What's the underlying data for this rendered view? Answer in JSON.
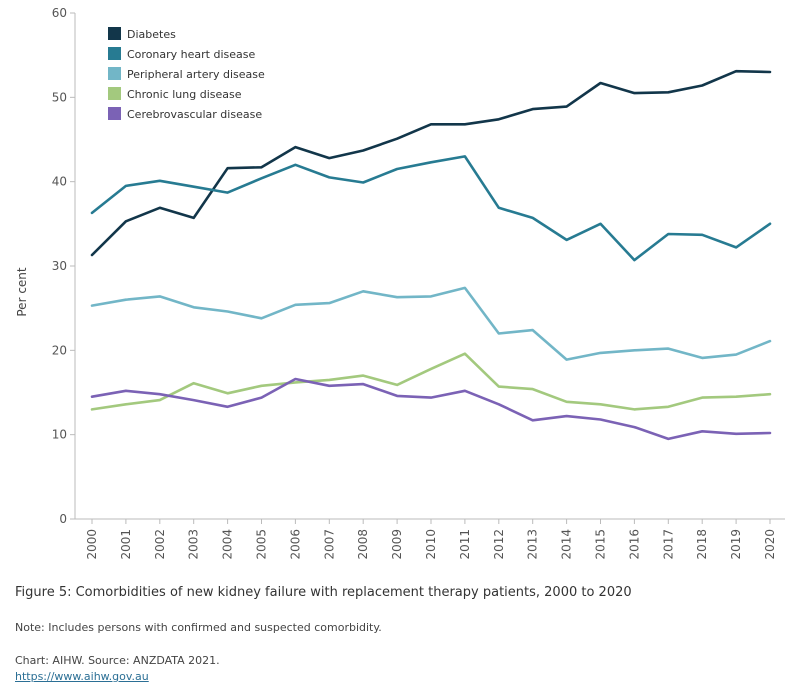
{
  "chart_data": {
    "type": "line",
    "title": "",
    "xlabel": "",
    "ylabel": "Per cent",
    "ylim": [
      0,
      60
    ],
    "yticks": [
      0,
      10,
      20,
      30,
      40,
      50,
      60
    ],
    "x": [
      "2000",
      "2001",
      "2002",
      "2003",
      "2004",
      "2005",
      "2006",
      "2007",
      "2008",
      "2009",
      "2010",
      "2011",
      "2012",
      "2013",
      "2014",
      "2015",
      "2016",
      "2017",
      "2018",
      "2019",
      "2020"
    ],
    "legend_position": "top-left",
    "series": [
      {
        "name": "Diabetes",
        "color": "#12364a",
        "values": [
          31.3,
          35.3,
          36.9,
          35.7,
          41.6,
          41.7,
          44.1,
          42.8,
          43.7,
          45.1,
          46.8,
          46.8,
          47.4,
          48.6,
          48.9,
          51.7,
          50.5,
          50.6,
          51.4,
          53.1,
          53.0
        ]
      },
      {
        "name": "Coronary heart disease",
        "color": "#277b92",
        "values": [
          36.3,
          39.5,
          40.1,
          39.4,
          38.7,
          40.4,
          42.0,
          40.5,
          39.9,
          41.5,
          42.3,
          43.0,
          36.9,
          35.7,
          33.1,
          35.0,
          30.7,
          33.8,
          33.7,
          32.2,
          35.0
        ]
      },
      {
        "name": "Peripheral artery disease",
        "color": "#72b6c7",
        "values": [
          25.3,
          26.0,
          26.4,
          25.1,
          24.6,
          23.8,
          25.4,
          25.6,
          27.0,
          26.3,
          26.4,
          27.4,
          22.0,
          22.4,
          18.9,
          19.7,
          20.0,
          20.2,
          19.1,
          19.5,
          21.1
        ]
      },
      {
        "name": "Chronic lung disease",
        "color": "#a3c97e",
        "values": [
          13.0,
          13.6,
          14.1,
          16.1,
          14.9,
          15.8,
          16.2,
          16.5,
          17.0,
          15.9,
          17.8,
          19.6,
          15.7,
          15.4,
          13.9,
          13.6,
          13.0,
          13.3,
          14.4,
          14.5,
          14.8
        ]
      },
      {
        "name": "Cerebrovascular disease",
        "color": "#7b62b5",
        "values": [
          14.5,
          15.2,
          14.8,
          14.1,
          13.3,
          14.4,
          16.6,
          15.8,
          16.0,
          14.6,
          14.4,
          15.2,
          13.6,
          11.7,
          12.2,
          11.8,
          10.9,
          9.5,
          10.4,
          10.1,
          10.2
        ]
      }
    ]
  },
  "caption": {
    "title": "Figure 5: Comorbidities of new kidney failure with replacement therapy patients, 2000 to 2020",
    "note": "Note: Includes persons with confirmed and suspected comorbidity.",
    "source": "Chart: AIHW. Source: ANZDATA 2021.",
    "link": "https://www.aihw.gov.au"
  }
}
